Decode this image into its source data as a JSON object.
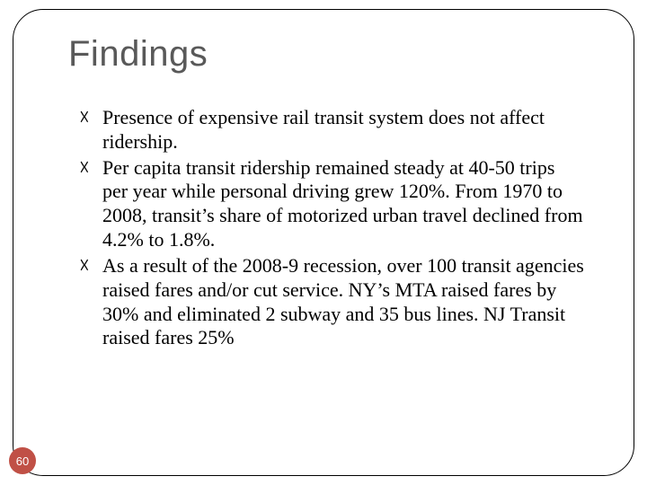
{
  "slide": {
    "title": "Findings",
    "title_color": "#595959",
    "title_fontsize": 40,
    "title_font": "Arial",
    "body_font": "Times New Roman",
    "body_fontsize": 22,
    "body_color": "#000000",
    "bullet_glyph": "☓",
    "bullets": [
      "Presence of expensive rail transit system does not affect ridership.",
      "Per capita transit ridership remained steady at 40-50 trips per year while personal driving grew 120%. From 1970 to 2008, transit’s share of motorized urban travel declined from 4.2% to 1.8%.",
      "As a result of the 2008-9 recession, over 100 transit agencies raised fares and/or cut service.  NY’s MTA raised fares by 30% and eliminated 2 subway and 35 bus lines.  NJ Transit raised fares 25%"
    ],
    "frame_border_color": "#000000",
    "frame_border_radius": 34,
    "background_color": "#ffffff"
  },
  "page_number": {
    "value": "60",
    "text_color": "#ffffff",
    "badge_color": "#c05046"
  }
}
